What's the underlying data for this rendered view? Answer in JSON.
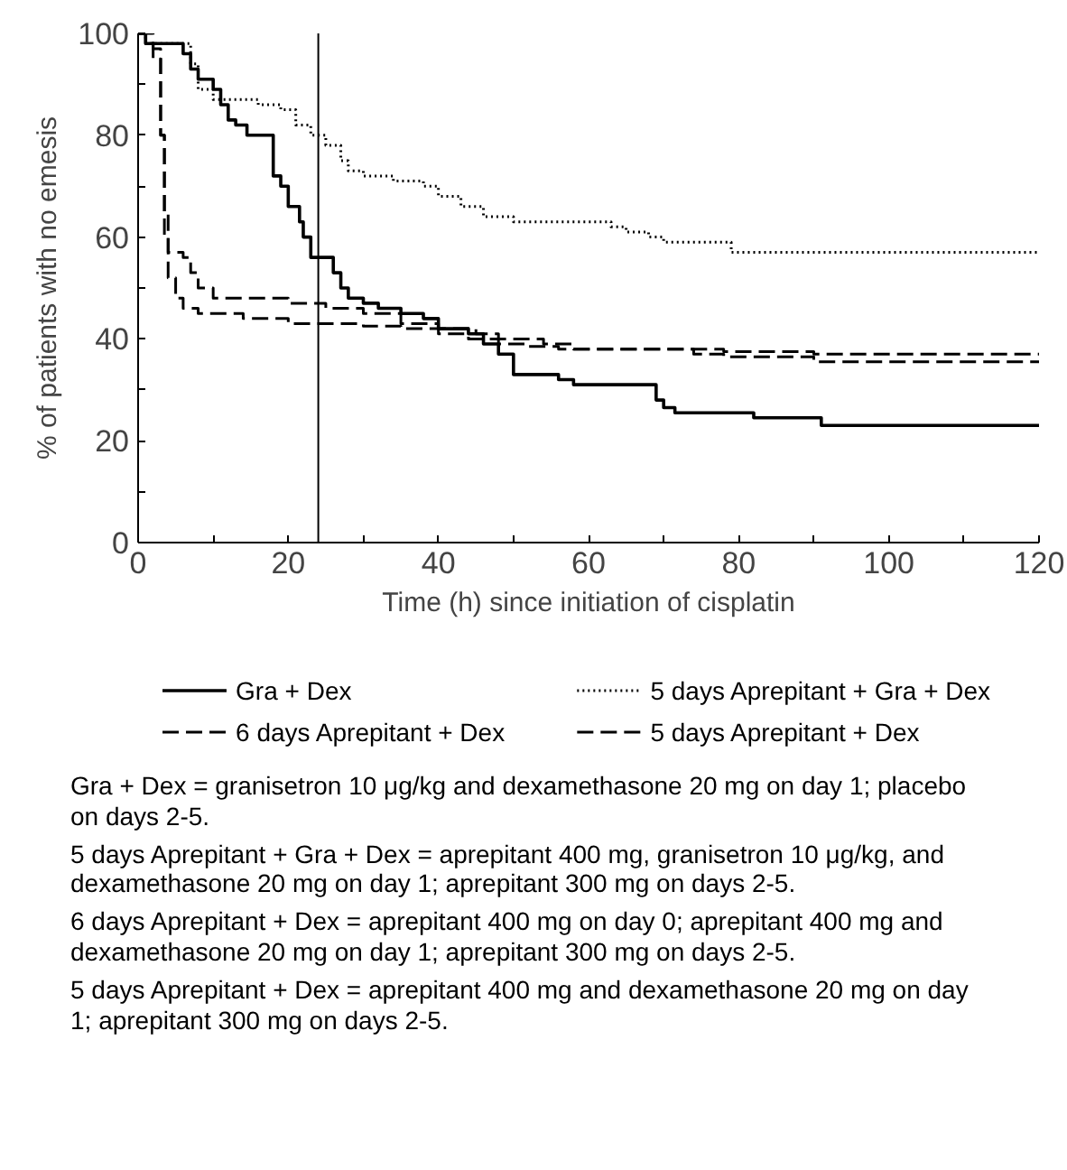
{
  "chart_data": {
    "type": "step",
    "xlabel": "Time (h) since initiation of cisplatin",
    "ylabel": "% of patients with no emesis",
    "xlim": [
      0,
      120
    ],
    "ylim": [
      0,
      100
    ],
    "xticks": [
      0,
      {
        "value": 10,
        "label": null
      },
      20,
      {
        "value": 30,
        "label": null
      },
      40,
      {
        "value": 50,
        "label": null
      },
      60,
      {
        "value": 70,
        "label": null
      },
      80,
      {
        "value": 90,
        "label": null
      },
      100,
      {
        "value": 110,
        "label": null
      },
      120
    ],
    "yticks": [
      0,
      {
        "value": 10,
        "label": null
      },
      20,
      {
        "value": 30,
        "label": null
      },
      40,
      {
        "value": 50,
        "label": null
      },
      60,
      {
        "value": 70,
        "label": null
      },
      80,
      {
        "value": 90,
        "label": null
      },
      100
    ],
    "grid": false,
    "legend": "bottom",
    "series": [
      {
        "name": "Gra + Dex",
        "color": "#000000",
        "line_style": "solid",
        "x": [
          0,
          1,
          6,
          7,
          8,
          10,
          11,
          12,
          13,
          14.5,
          18,
          19,
          20,
          21.5,
          22,
          23,
          25,
          26,
          27,
          28,
          30,
          32,
          35,
          38,
          40,
          44,
          46,
          48,
          50,
          56,
          58,
          69,
          70,
          71.5,
          82,
          91,
          120
        ],
        "values": [
          100,
          98,
          96,
          93,
          91,
          89,
          86,
          83,
          82,
          80,
          72,
          70,
          66,
          63,
          60,
          56,
          56,
          53,
          50,
          48,
          47,
          46,
          45,
          44,
          42,
          41,
          39,
          37,
          33,
          32,
          31,
          28,
          26.5,
          25.5,
          24.5,
          23,
          23
        ]
      },
      {
        "name": "5 days Aprepitant + Gra + Dex",
        "color": "#000000",
        "line_style": "dotted",
        "x": [
          0,
          1,
          7,
          8,
          10,
          16,
          19,
          21,
          23,
          25,
          27,
          28,
          30,
          34,
          38,
          40,
          43,
          46,
          50,
          63,
          65,
          68,
          70,
          79,
          120
        ],
        "values": [
          100,
          98,
          94,
          89,
          87,
          86,
          85,
          82,
          80,
          78,
          75,
          73,
          72,
          71,
          70,
          68,
          66,
          64,
          63,
          62,
          61,
          60,
          59,
          57,
          57
        ]
      },
      {
        "name": "6 days Aprepitant + Dex",
        "color": "#000000",
        "line_style": "dashed",
        "x": [
          0,
          1,
          2,
          3,
          3.5,
          4,
          6,
          7,
          8,
          10,
          20,
          25,
          30,
          35,
          40,
          45,
          48,
          54,
          58,
          74,
          78,
          90,
          120
        ],
        "values": [
          100,
          98,
          95,
          80,
          65,
          57,
          56,
          53,
          50,
          48,
          47,
          46,
          45,
          43,
          42,
          41,
          40,
          39,
          38,
          37,
          36.5,
          35.5,
          35.5
        ]
      },
      {
        "name": "5 days Aprepitant + Dex",
        "color": "#000000",
        "line_style": "dashed",
        "x": [
          0,
          2,
          3,
          3.5,
          4,
          5,
          6,
          8,
          14,
          20,
          30,
          35,
          40,
          44,
          48,
          52,
          56,
          78,
          90,
          120
        ],
        "values": [
          100,
          97,
          80,
          60,
          52,
          48,
          46,
          45,
          44,
          43,
          42.5,
          42,
          41,
          40,
          39,
          38.5,
          38,
          37.5,
          37,
          37
        ]
      }
    ],
    "ref_lines": [
      {
        "axis": "x",
        "value": 24,
        "color": "#000000"
      }
    ],
    "annotations": [
      "Gra + Dex = granisetron 10 μg/kg and dexamethasone 20 mg on day 1; placebo on days 2-5.",
      "5 days Aprepitant + Gra + Dex = aprepitant 400 mg, granisetron 10 μg/kg, and dexamethasone 20 mg on day 1; aprepitant 300 mg on days 2-5.",
      "6 days Aprepitant + Dex = aprepitant 400 mg on day 0; aprepitant 400 mg and dexamethasone 20 mg on day 1; aprepitant 300 mg on days 2-5.",
      "5 days Aprepitant + Dex = aprepitant 400 mg and dexamethasone 20 mg on day 1; aprepitant 300 mg on days 2-5."
    ]
  }
}
